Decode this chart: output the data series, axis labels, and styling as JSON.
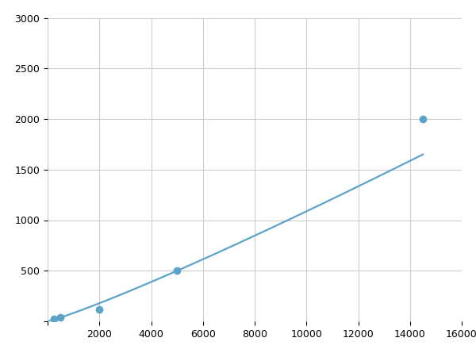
{
  "x_data": [
    250,
    500,
    2000,
    5000,
    14500
  ],
  "y_data": [
    20,
    40,
    120,
    500,
    2000
  ],
  "line_color": "#5ba3c9",
  "marker_color": "#5ba3c9",
  "marker_size": 6,
  "marker_style": "o",
  "xlim": [
    0,
    16000
  ],
  "ylim": [
    0,
    3000
  ],
  "xticks": [
    0,
    2000,
    4000,
    6000,
    8000,
    10000,
    12000,
    14000,
    16000
  ],
  "yticks": [
    0,
    500,
    1000,
    1500,
    2000,
    2500,
    3000
  ],
  "grid_color": "#cccccc",
  "background_color": "#ffffff",
  "line_width": 1.6
}
